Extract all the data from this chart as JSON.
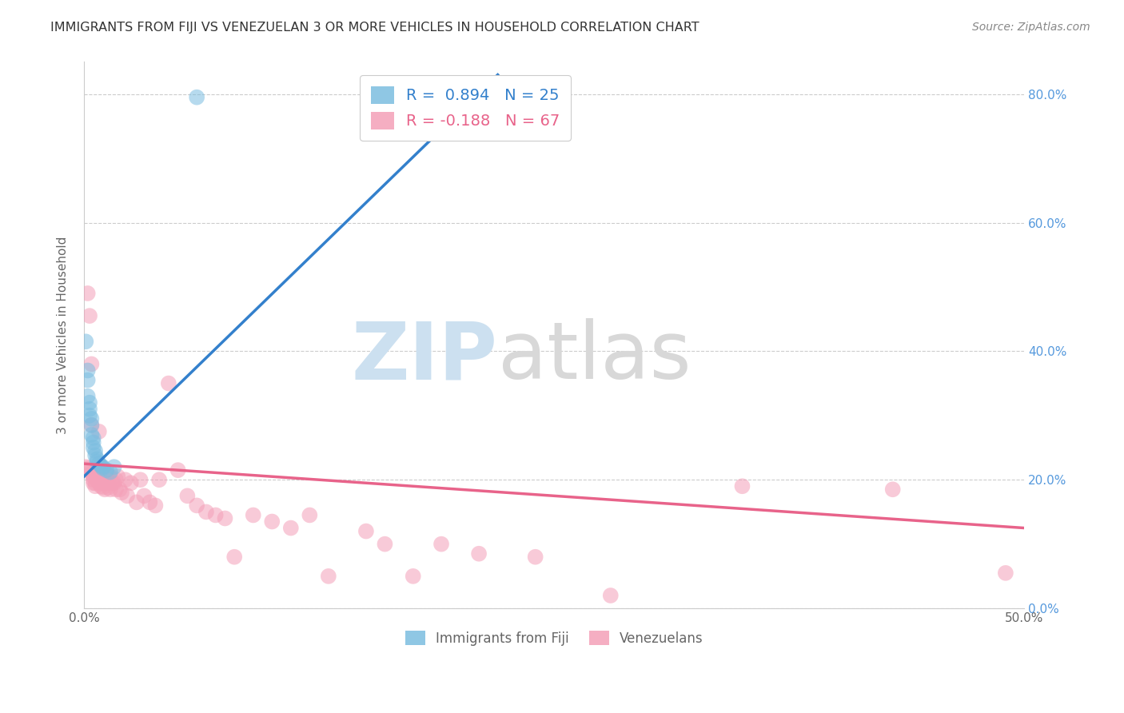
{
  "title": "IMMIGRANTS FROM FIJI VS VENEZUELAN 3 OR MORE VEHICLES IN HOUSEHOLD CORRELATION CHART",
  "source": "Source: ZipAtlas.com",
  "ylabel": "3 or more Vehicles in Household",
  "xlim": [
    0.0,
    0.5
  ],
  "ylim": [
    0.0,
    0.85
  ],
  "fiji_R": 0.894,
  "fiji_N": 25,
  "venezuelan_R": -0.188,
  "venezuelan_N": 67,
  "fiji_color": "#7bbde0",
  "venezuelan_color": "#f4a0b8",
  "fiji_line_color": "#3380cc",
  "venezuelan_line_color": "#e8638a",
  "fiji_scatter_x": [
    0.001,
    0.002,
    0.002,
    0.002,
    0.003,
    0.003,
    0.003,
    0.004,
    0.004,
    0.004,
    0.005,
    0.005,
    0.005,
    0.006,
    0.006,
    0.007,
    0.007,
    0.008,
    0.009,
    0.01,
    0.01,
    0.012,
    0.014,
    0.016,
    0.06
  ],
  "fiji_scatter_y": [
    0.415,
    0.37,
    0.355,
    0.33,
    0.32,
    0.31,
    0.3,
    0.295,
    0.285,
    0.27,
    0.265,
    0.258,
    0.25,
    0.245,
    0.238,
    0.232,
    0.228,
    0.225,
    0.222,
    0.22,
    0.218,
    0.215,
    0.212,
    0.22,
    0.795
  ],
  "venezuelan_scatter_x": [
    0.001,
    0.002,
    0.002,
    0.003,
    0.003,
    0.004,
    0.004,
    0.004,
    0.005,
    0.005,
    0.005,
    0.006,
    0.006,
    0.007,
    0.007,
    0.008,
    0.008,
    0.009,
    0.009,
    0.01,
    0.01,
    0.011,
    0.011,
    0.012,
    0.012,
    0.013,
    0.014,
    0.014,
    0.015,
    0.016,
    0.017,
    0.017,
    0.018,
    0.019,
    0.02,
    0.022,
    0.023,
    0.025,
    0.028,
    0.03,
    0.032,
    0.035,
    0.038,
    0.04,
    0.045,
    0.05,
    0.055,
    0.06,
    0.065,
    0.07,
    0.075,
    0.08,
    0.09,
    0.1,
    0.11,
    0.12,
    0.13,
    0.15,
    0.16,
    0.175,
    0.19,
    0.21,
    0.24,
    0.28,
    0.35,
    0.43,
    0.49
  ],
  "venezuelan_scatter_y": [
    0.22,
    0.49,
    0.218,
    0.455,
    0.215,
    0.38,
    0.285,
    0.21,
    0.205,
    0.2,
    0.195,
    0.195,
    0.19,
    0.205,
    0.2,
    0.275,
    0.195,
    0.22,
    0.19,
    0.195,
    0.188,
    0.2,
    0.185,
    0.21,
    0.195,
    0.188,
    0.205,
    0.185,
    0.195,
    0.195,
    0.2,
    0.185,
    0.205,
    0.185,
    0.18,
    0.2,
    0.175,
    0.195,
    0.165,
    0.2,
    0.175,
    0.165,
    0.16,
    0.2,
    0.35,
    0.215,
    0.175,
    0.16,
    0.15,
    0.145,
    0.14,
    0.08,
    0.145,
    0.135,
    0.125,
    0.145,
    0.05,
    0.12,
    0.1,
    0.05,
    0.1,
    0.085,
    0.08,
    0.02,
    0.19,
    0.185,
    0.055
  ],
  "fiji_line_x": [
    0.0,
    0.22
  ],
  "fiji_line_y": [
    0.205,
    0.83
  ],
  "ven_line_x": [
    0.0,
    0.5
  ],
  "ven_line_y": [
    0.225,
    0.125
  ]
}
